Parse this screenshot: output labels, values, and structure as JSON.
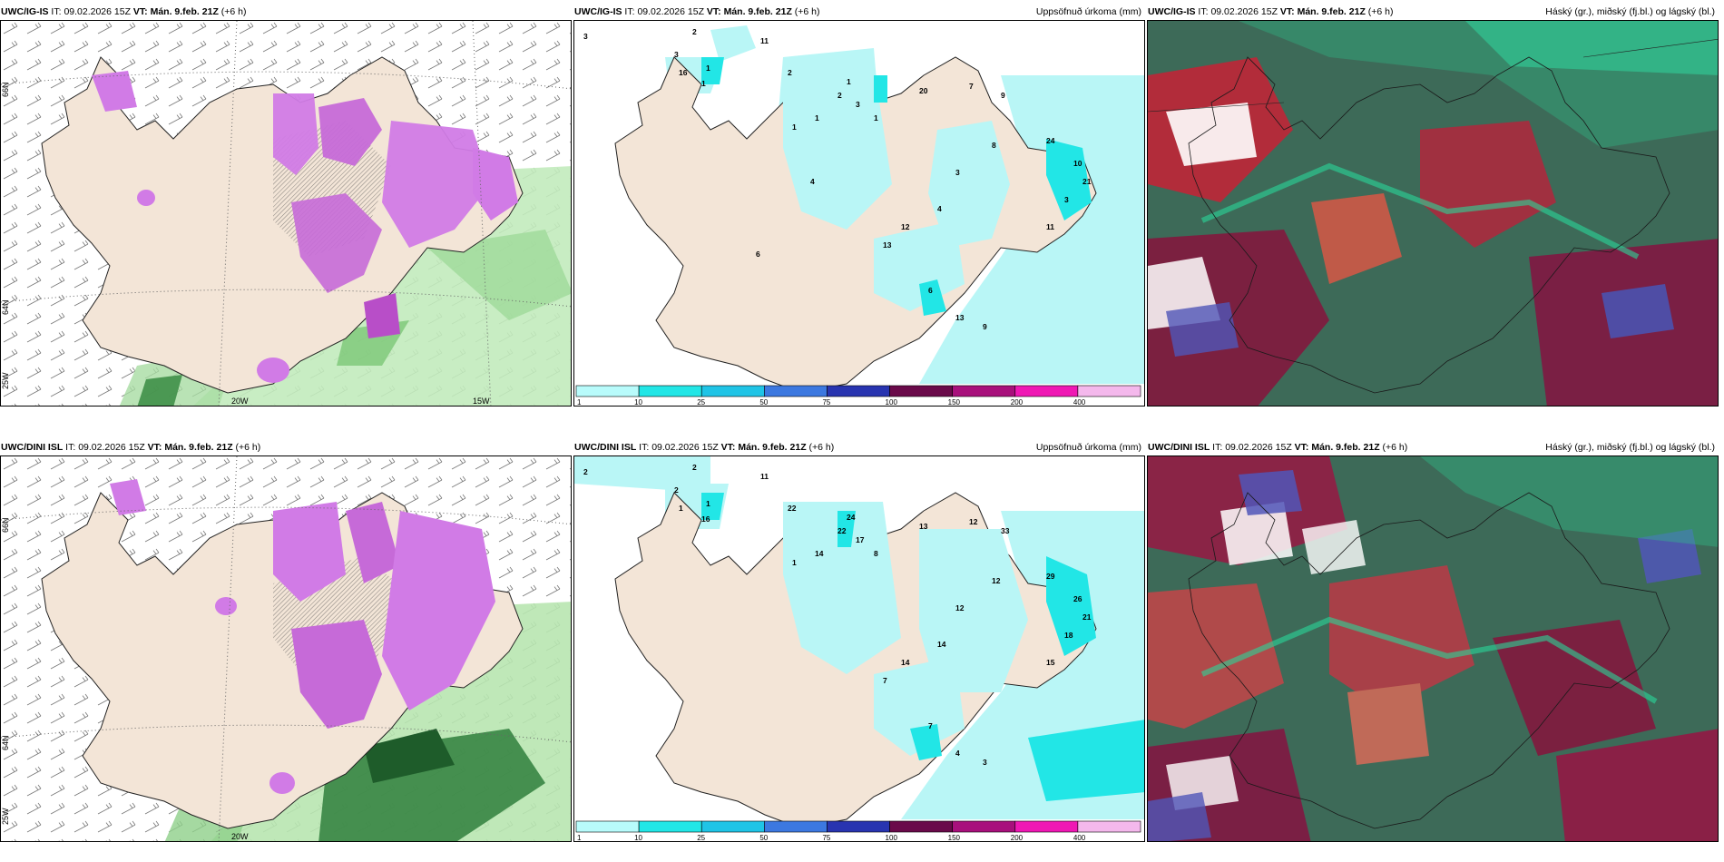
{
  "panels": [
    {
      "model": "UWC/IG-IS",
      "it_label": "IT:",
      "it": "09.02.2026 15Z",
      "vt_label": "VT:",
      "vt": "Mán. 9.feb. 21Z",
      "offset": "(+6 h)",
      "right": ""
    },
    {
      "model": "UWC/IG-IS",
      "it_label": "IT:",
      "it": "09.02.2026 15Z",
      "vt_label": "VT:",
      "vt": "Mán. 9.feb. 21Z",
      "offset": "(+6 h)",
      "right": "Uppsöfnuð úrkoma (mm)"
    },
    {
      "model": "UWC/IG-IS",
      "it_label": "IT:",
      "it": "09.02.2026 15Z",
      "vt_label": "VT:",
      "vt": "Mán. 9.feb. 21Z",
      "offset": "(+6 h)",
      "right": "Háský (gr.), miðský (fj.bl.) og lágský (bl.)"
    },
    {
      "model": "UWC/DINI ISL",
      "it_label": "IT:",
      "it": "09.02.2026 15Z",
      "vt_label": "VT:",
      "vt": "Mán. 9.feb. 21Z",
      "offset": "(+6 h)",
      "right": ""
    },
    {
      "model": "UWC/DINI ISL",
      "it_label": "IT:",
      "it": "09.02.2026 15Z",
      "vt_label": "VT:",
      "vt": "Mán. 9.feb. 21Z",
      "offset": "(+6 h)",
      "right": "Uppsöfnuð úrkoma (mm)"
    },
    {
      "model": "UWC/DINI ISL",
      "it_label": "IT:",
      "it": "09.02.2026 15Z",
      "vt_label": "VT:",
      "vt": "Mán. 9.feb. 21Z",
      "offset": "(+6 h)",
      "right": "Háský (gr.), miðský (fj.bl.) og lágský (bl.)"
    }
  ],
  "grid_labels": {
    "lat66": "66N",
    "lat64": "64N",
    "lon20": "20W",
    "lon15": "15W",
    "lon25": "25W"
  },
  "colorbar": {
    "ticks": [
      "1",
      "10",
      "25",
      "50",
      "75",
      "100",
      "150",
      "200",
      "400"
    ],
    "colors": [
      "#b8fbfb",
      "#22e6e6",
      "#1fc4e6",
      "#3c78e0",
      "#2834b0",
      "#6a0a4a",
      "#a8107c",
      "#ef18b4",
      "#f4b8ec"
    ]
  },
  "colors": {
    "land": "#f4e6d8",
    "precip_light": "#b9f6f6",
    "snow": "#d27be6",
    "rain_green": "#b8e6b0",
    "cloud_dark": "#3f6b5a",
    "cloud_red": "#9a2a3c"
  },
  "precip_values_top": [
    "3",
    "2",
    "3",
    "1",
    "1",
    "16",
    "11",
    "2",
    "1",
    "3",
    "2",
    "1",
    "1",
    "20",
    "7",
    "9",
    "24",
    "10",
    "3",
    "11",
    "21",
    "8",
    "3",
    "4",
    "12",
    "13",
    "6",
    "13",
    "9",
    "1",
    "4",
    "6"
  ],
  "precip_values_bottom": [
    "2",
    "2",
    "2",
    "1",
    "16",
    "1",
    "11",
    "22",
    "24",
    "17",
    "22",
    "14",
    "8",
    "13",
    "12",
    "33",
    "29",
    "26",
    "18",
    "15",
    "21",
    "12",
    "12",
    "14",
    "14",
    "7",
    "7",
    "4",
    "3",
    "1"
  ]
}
